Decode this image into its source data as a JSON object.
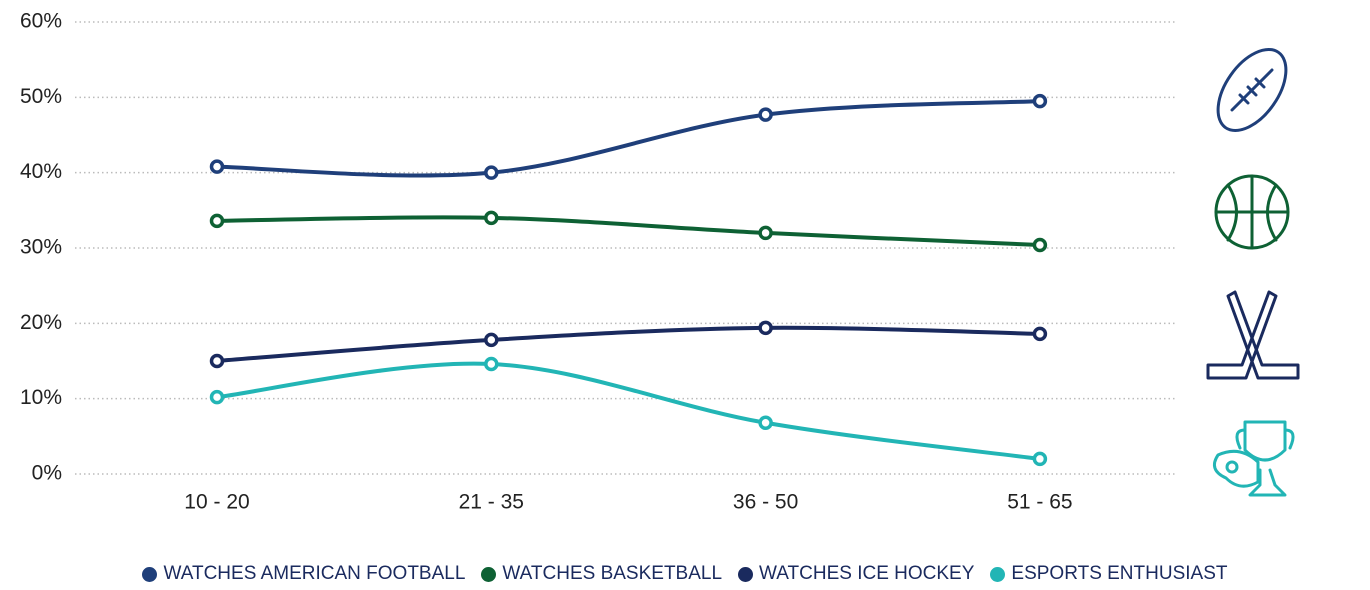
{
  "chart_data": {
    "type": "line",
    "categories": [
      "10 - 20",
      "21 - 35",
      "36 - 50",
      "51 - 65"
    ],
    "series": [
      {
        "name": "WATCHES AMERICAN FOOTBALL",
        "color": "#1f3f7a",
        "values": [
          40.8,
          40.0,
          47.7,
          49.5
        ]
      },
      {
        "name": "WATCHES BASKETBALL",
        "color": "#0e6134",
        "values": [
          33.6,
          34.0,
          32.0,
          30.4
        ]
      },
      {
        "name": "WATCHES ICE HOCKEY",
        "color": "#1a2a5e",
        "values": [
          15.0,
          17.8,
          19.4,
          18.6
        ]
      },
      {
        "name": "ESPORTS ENTHUSIAST",
        "color": "#22b5b5",
        "values": [
          10.2,
          14.6,
          6.8,
          2.0
        ]
      }
    ],
    "ylim": [
      0,
      60
    ],
    "yticks": [
      {
        "value": 0,
        "label": "0%"
      },
      {
        "value": 10,
        "label": "10%"
      },
      {
        "value": 20,
        "label": "20%"
      },
      {
        "value": 30,
        "label": "30%"
      },
      {
        "value": 40,
        "label": "40%"
      },
      {
        "value": 50,
        "label": "50%"
      },
      {
        "value": 60,
        "label": "60%"
      }
    ],
    "grid": true
  }
}
